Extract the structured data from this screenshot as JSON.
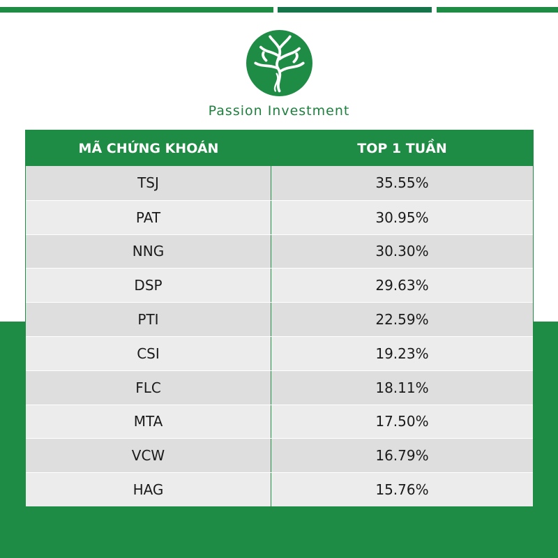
{
  "brand": {
    "name": "Passion Investment",
    "colors": {
      "primary": "#1e8c45",
      "dark": "#15744a",
      "row_dark": "#dedede",
      "row_light": "#ececec"
    },
    "logo_icon": "tree-logo-icon"
  },
  "table": {
    "headers": {
      "code": "MÃ CHỨNG KHOÁN",
      "value": "TOP 1 TUẦN"
    },
    "rows": [
      {
        "code": "TSJ",
        "value": "35.55%"
      },
      {
        "code": "PAT",
        "value": "30.95%"
      },
      {
        "code": "NNG",
        "value": "30.30%"
      },
      {
        "code": "DSP",
        "value": "29.63%"
      },
      {
        "code": "PTI",
        "value": "22.59%"
      },
      {
        "code": "CSI",
        "value": "19.23%"
      },
      {
        "code": "FLC",
        "value": "18.11%"
      },
      {
        "code": "MTA",
        "value": "17.50%"
      },
      {
        "code": "VCW",
        "value": "16.79%"
      },
      {
        "code": "HAG",
        "value": "15.76%"
      }
    ]
  }
}
